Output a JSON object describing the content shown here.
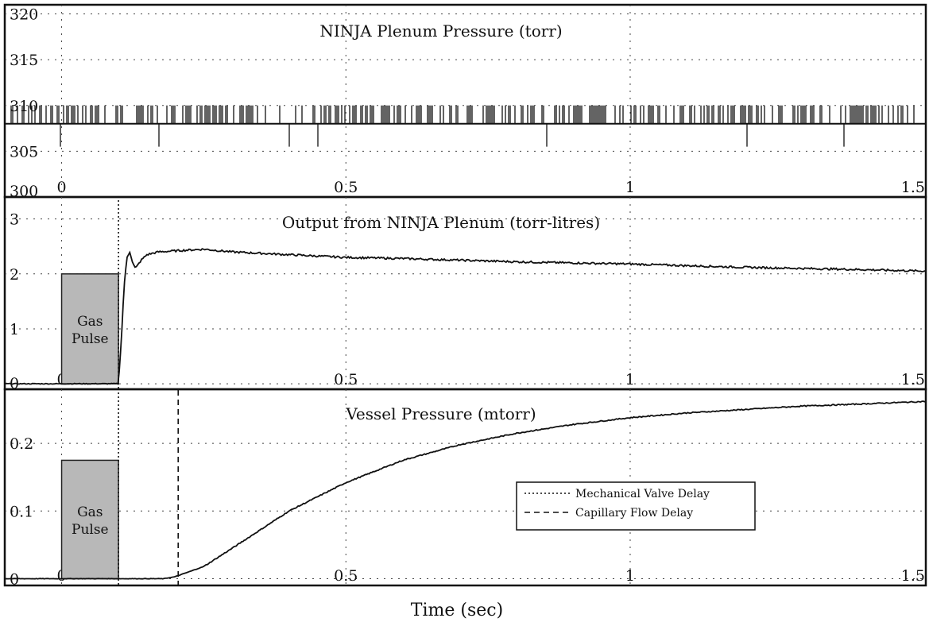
{
  "xlabel": "Time (sec)",
  "legend": {
    "items": [
      {
        "label": "Mechanical Valve Delay",
        "style": "dotted"
      },
      {
        "label": "Capillary Flow Delay",
        "style": "dashed"
      }
    ]
  },
  "chart_data": [
    {
      "type": "line",
      "title": "NINJA Plenum Pressure (torr)",
      "xlim": [
        -0.1,
        1.52
      ],
      "ylim": [
        300,
        321
      ],
      "yticks": [
        300,
        305,
        310,
        315,
        320
      ],
      "xticks": [
        0,
        0.5,
        1,
        1.5
      ],
      "grid": true,
      "series": [
        {
          "x": [
            -0.1,
            1.52
          ],
          "y": [
            308,
            308
          ],
          "noise_high": 310,
          "noise_low": 305.5
        }
      ]
    },
    {
      "type": "line",
      "title": "Output from NINJA Plenum (torr-litres)",
      "xlim": [
        -0.1,
        1.52
      ],
      "ylim": [
        -0.1,
        3.4
      ],
      "yticks": [
        0,
        1,
        2,
        3
      ],
      "xticks": [
        0,
        0.5,
        1,
        1.5
      ],
      "grid": true,
      "annotation": {
        "text_lines": [
          "Gas",
          "Pulse"
        ],
        "x0": 0,
        "x1": 0.1,
        "y0": 0,
        "y1": 2
      },
      "vlines": [
        {
          "x": 0.1,
          "style": "dotted"
        }
      ],
      "series": [
        {
          "x": [
            -0.1,
            0,
            0.1,
            0.105,
            0.11,
            0.115,
            0.12,
            0.125,
            0.13,
            0.14,
            0.15,
            0.17,
            0.2,
            0.25,
            0.3,
            0.4,
            0.5,
            0.6,
            0.7,
            0.8,
            0.9,
            1.0,
            1.1,
            1.2,
            1.3,
            1.4,
            1.52
          ],
          "y": [
            0,
            0,
            0,
            0.8,
            1.8,
            2.3,
            2.4,
            2.2,
            2.1,
            2.25,
            2.35,
            2.4,
            2.42,
            2.45,
            2.4,
            2.35,
            2.3,
            2.28,
            2.25,
            2.22,
            2.2,
            2.18,
            2.15,
            2.12,
            2.1,
            2.08,
            2.05
          ]
        }
      ]
    },
    {
      "type": "line",
      "title": "Vessel Pressure (mtorr)",
      "xlim": [
        -0.1,
        1.52
      ],
      "ylim": [
        -0.01,
        0.28
      ],
      "yticks": [
        0,
        0.1,
        0.2
      ],
      "xticks": [
        0,
        0.5,
        1,
        1.5
      ],
      "grid": true,
      "annotation": {
        "text_lines": [
          "Gas",
          "Pulse"
        ],
        "x0": 0,
        "x1": 0.1,
        "y0": 0,
        "y1": 0.175
      },
      "vlines": [
        {
          "x": 0.1,
          "style": "dotted"
        },
        {
          "x": 0.205,
          "style": "dashed"
        }
      ],
      "series": [
        {
          "x": [
            -0.1,
            0,
            0.1,
            0.18,
            0.2,
            0.25,
            0.3,
            0.4,
            0.5,
            0.6,
            0.7,
            0.8,
            0.9,
            1.0,
            1.1,
            1.2,
            1.3,
            1.4,
            1.52
          ],
          "y": [
            0,
            0,
            0,
            0,
            0.003,
            0.018,
            0.045,
            0.1,
            0.142,
            0.175,
            0.198,
            0.215,
            0.228,
            0.238,
            0.245,
            0.25,
            0.255,
            0.258,
            0.262
          ]
        }
      ]
    }
  ]
}
